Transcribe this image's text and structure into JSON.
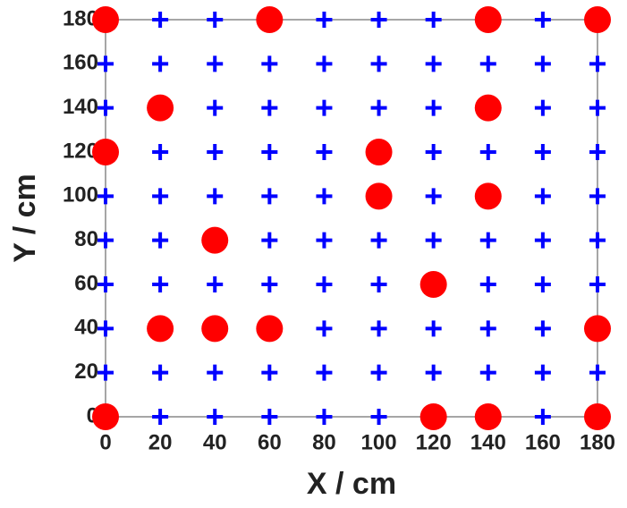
{
  "chart_data": {
    "type": "scatter",
    "xlabel": "X / cm",
    "ylabel": "Y / cm",
    "xlim": [
      0,
      180
    ],
    "ylim": [
      0,
      180
    ],
    "xticks": [
      0,
      20,
      40,
      60,
      80,
      100,
      120,
      140,
      160,
      180
    ],
    "yticks": [
      0,
      20,
      40,
      60,
      80,
      100,
      120,
      140,
      160,
      180
    ],
    "series": [
      {
        "marker": "plus",
        "color": "#0000ff",
        "x": [
          0,
          20,
          40,
          60,
          80,
          100,
          120,
          140,
          160,
          180,
          0,
          20,
          40,
          60,
          80,
          100,
          120,
          140,
          160,
          180,
          0,
          20,
          40,
          60,
          80,
          100,
          120,
          140,
          160,
          180,
          0,
          20,
          40,
          60,
          80,
          100,
          120,
          140,
          160,
          180,
          0,
          20,
          40,
          60,
          80,
          100,
          120,
          140,
          160,
          180,
          0,
          20,
          40,
          60,
          80,
          100,
          120,
          140,
          160,
          180,
          0,
          20,
          40,
          60,
          80,
          100,
          120,
          140,
          160,
          180,
          0,
          20,
          40,
          60,
          80,
          100,
          120,
          140,
          160,
          180,
          0,
          20,
          40,
          60,
          80,
          100,
          120,
          140,
          160,
          180,
          0,
          20,
          40,
          60,
          80,
          100,
          120,
          140,
          160,
          180
        ],
        "values": [
          0,
          0,
          0,
          0,
          0,
          0,
          0,
          0,
          0,
          0,
          20,
          20,
          20,
          20,
          20,
          20,
          20,
          20,
          20,
          20,
          40,
          40,
          40,
          40,
          40,
          40,
          40,
          40,
          40,
          40,
          60,
          60,
          60,
          60,
          60,
          60,
          60,
          60,
          60,
          60,
          80,
          80,
          80,
          80,
          80,
          80,
          80,
          80,
          80,
          80,
          100,
          100,
          100,
          100,
          100,
          100,
          100,
          100,
          100,
          100,
          120,
          120,
          120,
          120,
          120,
          120,
          120,
          120,
          120,
          120,
          140,
          140,
          140,
          140,
          140,
          140,
          140,
          140,
          140,
          140,
          160,
          160,
          160,
          160,
          160,
          160,
          160,
          160,
          160,
          160,
          180,
          180,
          180,
          180,
          180,
          180,
          180,
          180,
          180,
          180
        ]
      },
      {
        "marker": "circle",
        "color": "#ff0000",
        "x": [
          0,
          60,
          140,
          180,
          20,
          140,
          0,
          100,
          100,
          140,
          40,
          120,
          20,
          40,
          60,
          180,
          0,
          120,
          140,
          180
        ],
        "values": [
          180,
          180,
          180,
          180,
          140,
          140,
          120,
          120,
          100,
          100,
          80,
          60,
          40,
          40,
          40,
          40,
          0,
          0,
          0,
          0
        ]
      }
    ]
  }
}
